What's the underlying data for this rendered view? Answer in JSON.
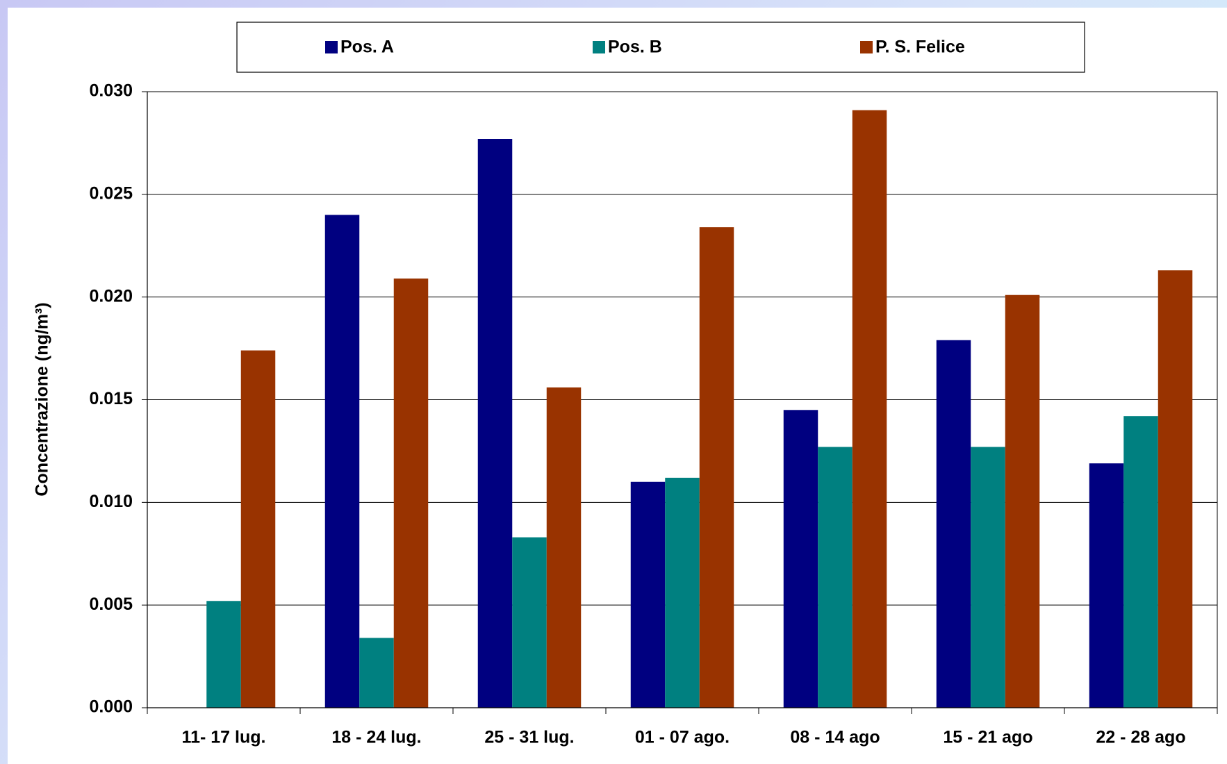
{
  "chart_data": {
    "type": "bar",
    "y_label": "Concentrazione (ng/m³)",
    "categories": [
      "11- 17 lug.",
      "18 - 24 lug.",
      "25 - 31 lug.",
      "01 - 07 ago.",
      "08 - 14 ago",
      "15 - 21 ago",
      "22 - 28 ago"
    ],
    "series": [
      {
        "name": "Pos. A",
        "color": "#000080",
        "values": [
          null,
          0.024,
          0.0277,
          0.011,
          0.0145,
          0.0179,
          0.0119
        ]
      },
      {
        "name": "Pos. B",
        "color": "#008080",
        "values": [
          0.0052,
          0.0034,
          0.0083,
          0.0112,
          0.0127,
          0.0127,
          0.0142
        ]
      },
      {
        "name": "P. S. Felice",
        "color": "#993300",
        "values": [
          0.0174,
          0.0209,
          0.0156,
          0.0234,
          0.0291,
          0.0201,
          0.0213
        ]
      }
    ],
    "ylim": [
      0,
      0.03
    ],
    "yticks": [
      {
        "value": 0,
        "label": "0.000"
      },
      {
        "value": 0.005,
        "label": "0.005"
      },
      {
        "value": 0.01,
        "label": "0.010"
      },
      {
        "value": 0.015,
        "label": "0.015"
      },
      {
        "value": 0.02,
        "label": "0.020"
      },
      {
        "value": 0.025,
        "label": "0.025"
      },
      {
        "value": 0.03,
        "label": "0.030"
      }
    ],
    "grid": true,
    "legend": "top"
  }
}
